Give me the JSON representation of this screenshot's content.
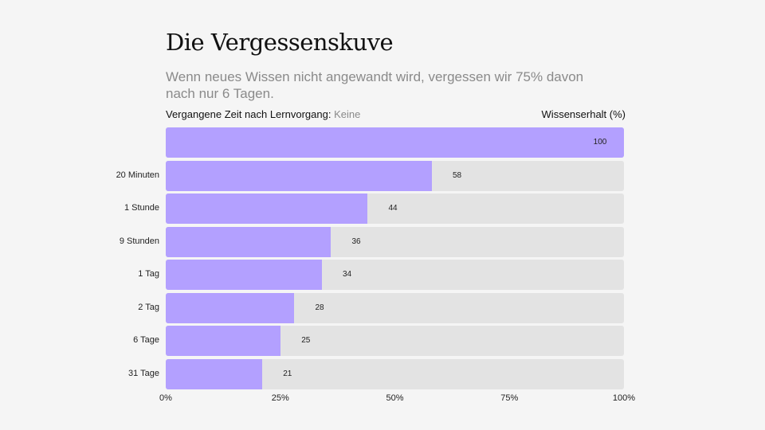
{
  "title": "Die Vergessenskuve",
  "subtitle": "Wenn neues Wissen nicht angewandt wird, vergessen wir 75% davon nach nur 6 Tagen.",
  "chart_data": {
    "type": "bar",
    "orientation": "horizontal",
    "xlabel": "Vergangene Zeit nach Lernvorgang:",
    "ylabel": "Wissenserhalt (%)",
    "categories": [
      "Keine",
      "20 Minuten",
      "1 Stunde",
      "9 Stunden",
      "1 Tag",
      "2 Tag",
      "6 Tage",
      "31 Tage"
    ],
    "values": [
      100,
      58,
      44,
      36,
      34,
      28,
      25,
      21
    ],
    "xlim": [
      0,
      100
    ],
    "ticks": [
      "0%",
      "25%",
      "50%",
      "75%",
      "100%"
    ],
    "tick_values": [
      0,
      25,
      50,
      75,
      100
    ],
    "colors": {
      "bar": "#b3a0ff",
      "track": "#e3e3e3"
    }
  }
}
